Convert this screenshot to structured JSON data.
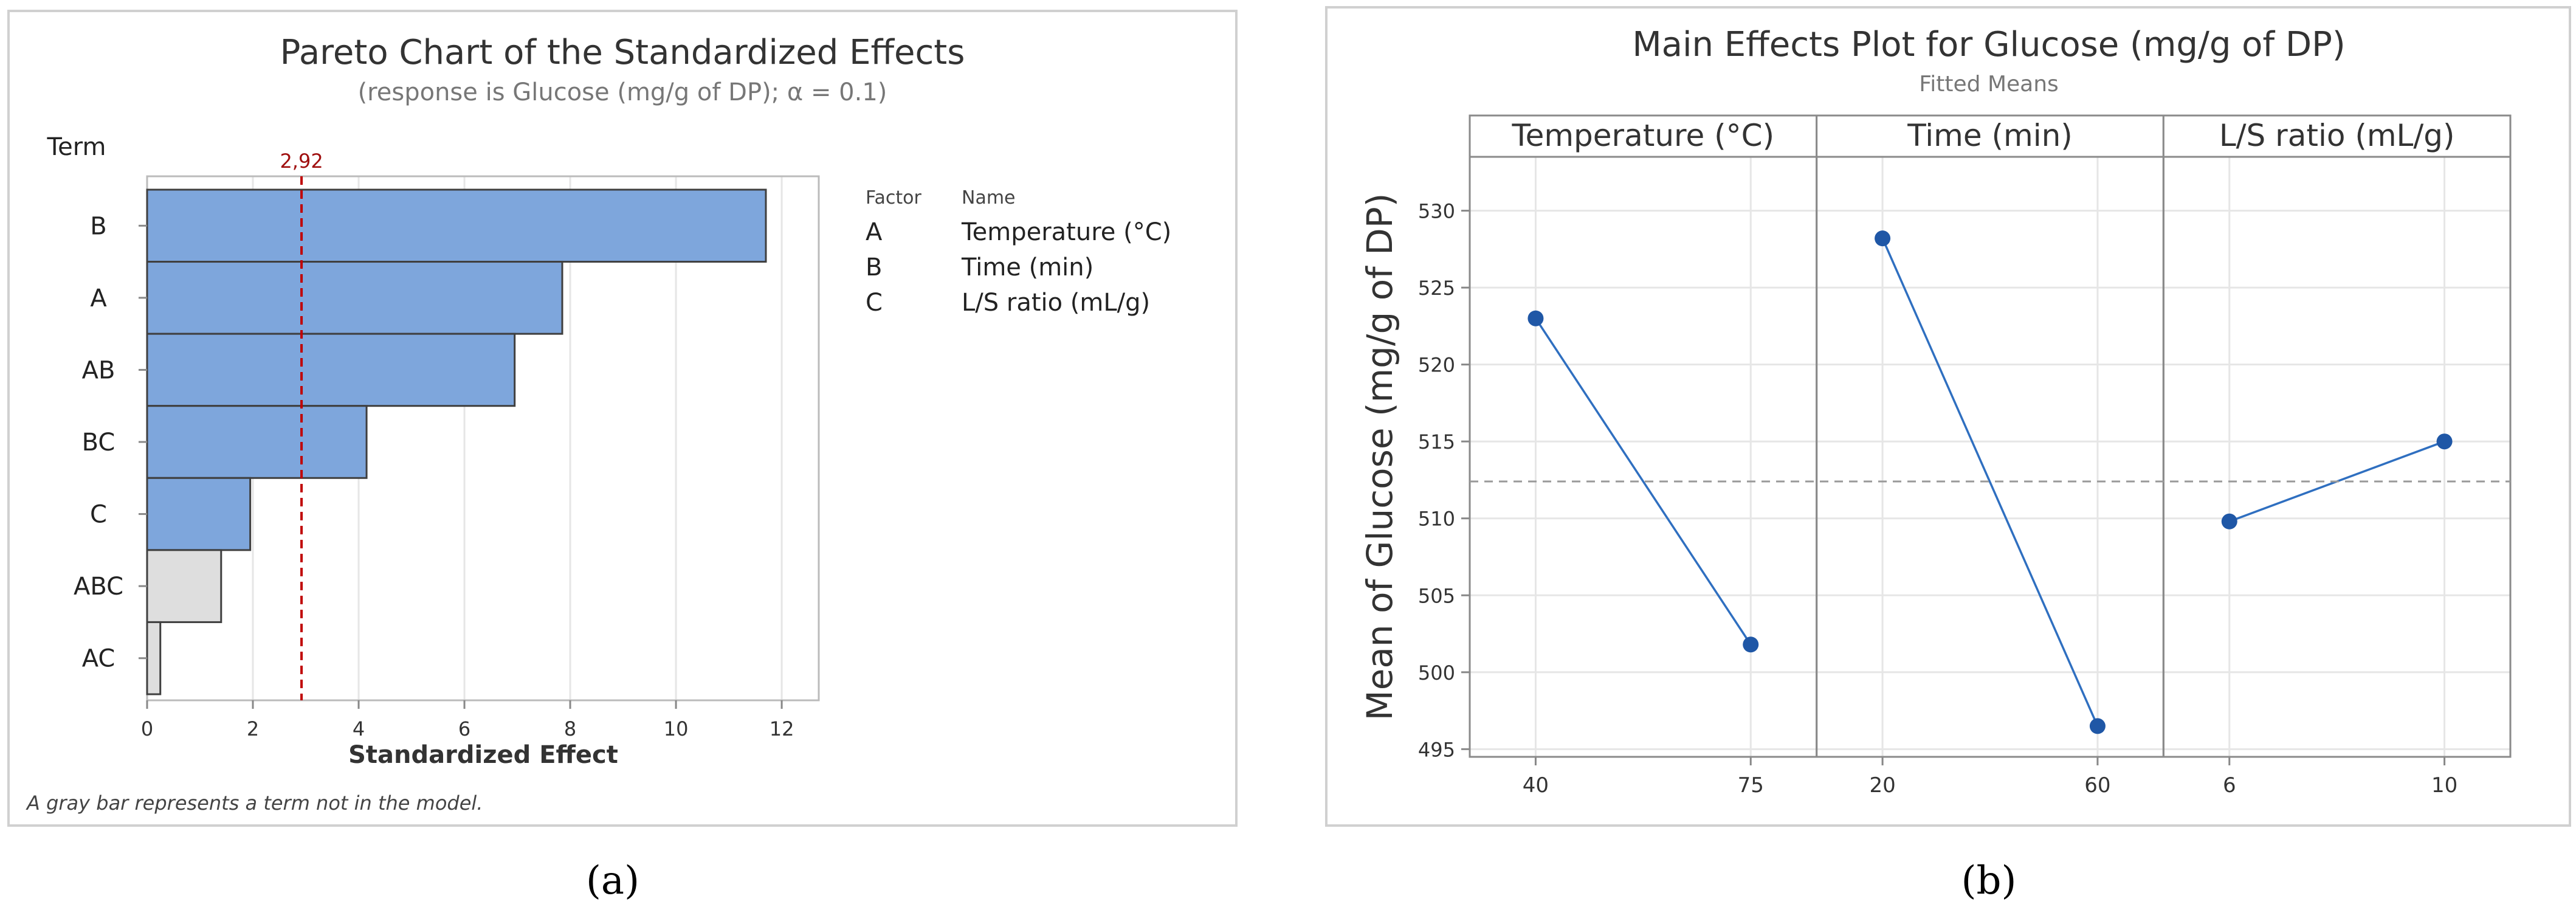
{
  "panel_a": {
    "title": "Pareto Chart of the Standardized Effects",
    "subtitle": "(response is Glucose (mg/g of DP); α = 0.1)",
    "term_header": "Term",
    "ref_label": "2,92",
    "factor_header": "Factor",
    "name_header": "Name",
    "factors": [
      {
        "factor": "A",
        "name": "Temperature (°C)"
      },
      {
        "factor": "B",
        "name": "Time (min)"
      },
      {
        "factor": "C",
        "name": "L/S ratio (mL/g)"
      }
    ],
    "footnote": "A gray bar represents a term not in the model.",
    "caption": "(a)"
  },
  "panel_b": {
    "title": "Main Effects Plot for Glucose (mg/g of DP)",
    "subtitle": "Fitted Means",
    "caption": "(b)"
  },
  "colors": {
    "bar_in_model": "#7ea6dc",
    "bar_not_in_model": "#dedede",
    "bar_stroke": "#3f3f3f",
    "ref_line": "#c00000",
    "series": "#2f6fc0",
    "point": "#1f57a6",
    "mean_line": "#9a9a9a",
    "grid": "#e6e6e6"
  },
  "chart_data": [
    {
      "type": "bar",
      "orientation": "horizontal",
      "title": "Pareto Chart of the Standardized Effects",
      "subtitle": "(response is Glucose (mg/g of DP); α = 0.1)",
      "xlabel": "Standardized Effect",
      "ylabel": "Term",
      "categories": [
        "B",
        "A",
        "AB",
        "BC",
        "C",
        "ABC",
        "AC"
      ],
      "values": [
        11.7,
        7.85,
        6.95,
        4.15,
        1.95,
        1.4,
        0.25
      ],
      "in_model": [
        true,
        true,
        true,
        true,
        true,
        false,
        false
      ],
      "reference_line": 2.92,
      "reference_label": "2,92",
      "xlim": [
        0,
        12.7
      ],
      "xticks": [
        0,
        2,
        4,
        6,
        8,
        10,
        12
      ],
      "grid": true
    },
    {
      "type": "line",
      "title": "Main Effects Plot for Glucose (mg/g of DP)",
      "subtitle": "Fitted Means",
      "ylabel": "Mean of Glucose (mg/g of DP)",
      "ylim": [
        494.5,
        533.5
      ],
      "yticks": [
        495,
        500,
        505,
        510,
        515,
        520,
        525,
        530
      ],
      "overall_mean": 512.4,
      "grid": true,
      "panels": [
        {
          "label": "Temperature (°C)",
          "x": [
            "40",
            "75"
          ],
          "values": [
            523.0,
            501.8
          ]
        },
        {
          "label": "Time (min)",
          "x": [
            "20",
            "60"
          ],
          "values": [
            528.2,
            496.5
          ]
        },
        {
          "label": "L/S ratio (mL/g)",
          "x": [
            "6",
            "10"
          ],
          "values": [
            509.8,
            515.0
          ]
        }
      ]
    }
  ]
}
